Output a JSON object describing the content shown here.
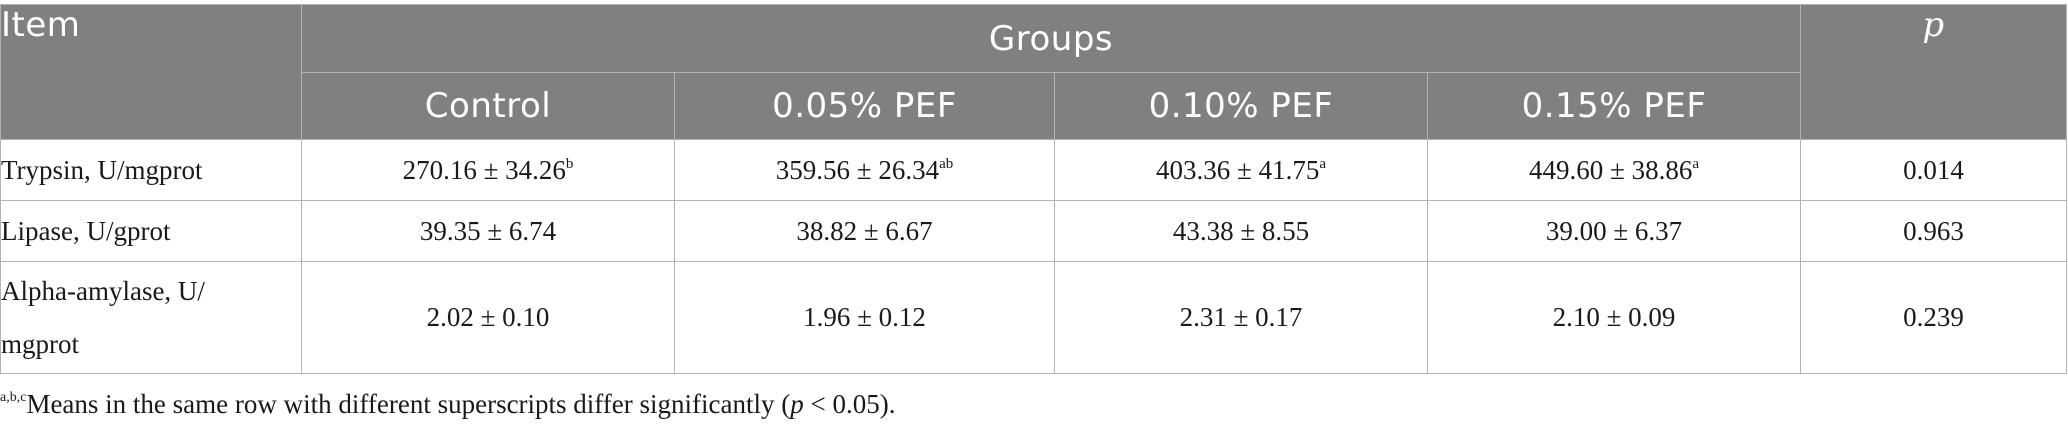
{
  "header": {
    "item": "Item",
    "groups": "Groups",
    "p": "p",
    "columns": [
      "Control",
      "0.05% PEF",
      "0.10% PEF",
      "0.15% PEF"
    ]
  },
  "rows": [
    {
      "label": "Trypsin, U/mgprot",
      "cells": [
        {
          "value": "270.16 ± 34.26",
          "sup": "b"
        },
        {
          "value": "359.56 ± 26.34",
          "sup": "ab"
        },
        {
          "value": "403.36 ± 41.75",
          "sup": "a"
        },
        {
          "value": "449.60 ± 38.86",
          "sup": "a"
        }
      ],
      "p": "0.014"
    },
    {
      "label": "Lipase, U/gprot",
      "cells": [
        {
          "value": "39.35 ± 6.74",
          "sup": ""
        },
        {
          "value": "38.82 ± 6.67",
          "sup": ""
        },
        {
          "value": "43.38 ± 8.55",
          "sup": ""
        },
        {
          "value": "39.00 ± 6.37",
          "sup": ""
        }
      ],
      "p": "0.963"
    },
    {
      "label_line1": "Alpha-amylase, U/",
      "label_line2": "mgprot",
      "cells": [
        {
          "value": "2.02 ± 0.10",
          "sup": ""
        },
        {
          "value": "1.96 ± 0.12",
          "sup": ""
        },
        {
          "value": "2.31 ± 0.17",
          "sup": ""
        },
        {
          "value": "2.10 ± 0.09",
          "sup": ""
        }
      ],
      "p": "0.239"
    }
  ],
  "footnote": {
    "sup": "a,b,c",
    "text_before": "Means in the same row with different superscripts differ significantly (",
    "p": "p",
    "text_after": " < 0.05)."
  },
  "colors": {
    "header_bg": "#808080",
    "header_text": "#ffffff",
    "border": "#b3b3b3"
  }
}
